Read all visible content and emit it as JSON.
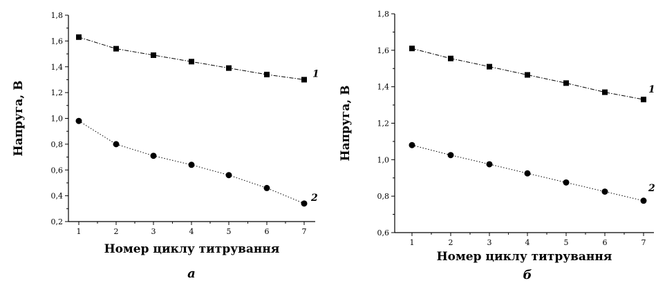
{
  "chart_data": [
    {
      "type": "scatter",
      "panel_label": "a",
      "xlabel": "Номер циклу титрування",
      "ylabel": "Напруга, В",
      "x": [
        1,
        2,
        3,
        4,
        5,
        6,
        7
      ],
      "xticks": [
        "1",
        "2",
        "3",
        "4",
        "5",
        "6",
        "7"
      ],
      "ylim": [
        0.2,
        1.8
      ],
      "yticks": [
        "0,2",
        "0,4",
        "0,6",
        "0,8",
        "1,0",
        "1,2",
        "1,4",
        "1,6",
        "1,8"
      ],
      "grid": false,
      "series": [
        {
          "name": "1",
          "marker": "square",
          "line": "dash-dot",
          "values": [
            1.63,
            1.54,
            1.49,
            1.44,
            1.39,
            1.34,
            1.3
          ]
        },
        {
          "name": "2",
          "marker": "circle",
          "line": "dotted",
          "values": [
            0.98,
            0.8,
            0.71,
            0.64,
            0.56,
            0.46,
            0.34
          ]
        }
      ]
    },
    {
      "type": "scatter",
      "panel_label": "б",
      "xlabel": "Номер циклу титрування",
      "ylabel": "Напруга, В",
      "x": [
        1,
        2,
        3,
        4,
        5,
        6,
        7
      ],
      "xticks": [
        "1",
        "2",
        "3",
        "4",
        "5",
        "6",
        "7"
      ],
      "ylim": [
        0.6,
        1.8
      ],
      "yticks": [
        "0,6",
        "0,8",
        "1,0",
        "1,2",
        "1,4",
        "1,6",
        "1,8"
      ],
      "grid": false,
      "series": [
        {
          "name": "1",
          "marker": "square",
          "line": "dash-dot",
          "values": [
            1.61,
            1.555,
            1.51,
            1.465,
            1.42,
            1.37,
            1.33
          ]
        },
        {
          "name": "2",
          "marker": "circle",
          "line": "dotted",
          "values": [
            1.08,
            1.025,
            0.975,
            0.925,
            0.875,
            0.825,
            0.775
          ]
        }
      ]
    }
  ]
}
